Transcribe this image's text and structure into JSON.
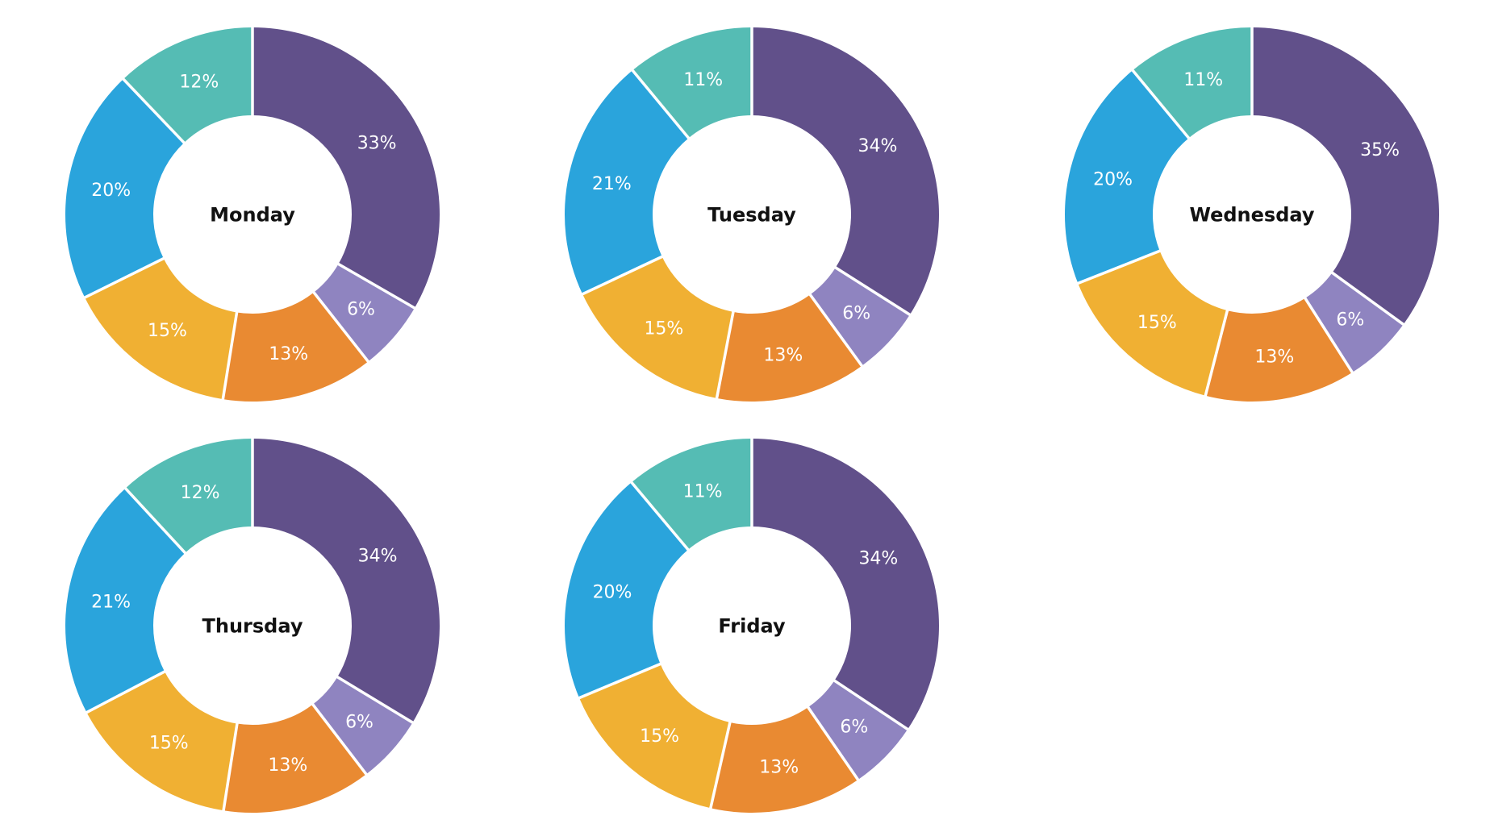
{
  "page": {
    "background_color": "#ffffff"
  },
  "chart_data": {
    "type": "pie",
    "subtype": "donut",
    "direction": "clockwise",
    "start_angle_deg": 0,
    "donut_hole_ratio": 0.53,
    "value_unit": "percent",
    "legend": "none",
    "grid": "off",
    "separator_color": "#ffffff",
    "text_colors": {
      "slice_label": "#ffffff",
      "title": "#111111"
    },
    "segments": [
      {
        "name": "purple-segment",
        "color": "#61508A"
      },
      {
        "name": "light-purple-segment",
        "color": "#8F84C0"
      },
      {
        "name": "orange-segment",
        "color": "#E98A32"
      },
      {
        "name": "amber-segment",
        "color": "#F0B033"
      },
      {
        "name": "blue-segment",
        "color": "#2AA4DC"
      },
      {
        "name": "teal-segment",
        "color": "#55BCB4"
      }
    ],
    "charts": [
      {
        "title": "Monday",
        "values": [
          33,
          6,
          13,
          15,
          20,
          12
        ],
        "labels": [
          "33%",
          "6%",
          "13%",
          "15%",
          "20%",
          "12%"
        ]
      },
      {
        "title": "Tuesday",
        "values": [
          34,
          6,
          13,
          15,
          21,
          11
        ],
        "labels": [
          "34%",
          "6%",
          "13%",
          "15%",
          "21%",
          "11%"
        ]
      },
      {
        "title": "Wednesday",
        "values": [
          35,
          6,
          13,
          15,
          20,
          11
        ],
        "labels": [
          "35%",
          "6%",
          "13%",
          "15%",
          "20%",
          "11%"
        ]
      },
      {
        "title": "Thursday",
        "values": [
          34,
          6,
          13,
          15,
          21,
          12
        ],
        "labels": [
          "34%",
          "6%",
          "13%",
          "15%",
          "21%",
          "12%"
        ]
      },
      {
        "title": "Friday",
        "values": [
          34,
          6,
          13,
          15,
          20,
          11
        ],
        "labels": [
          "34%",
          "6%",
          "13%",
          "15%",
          "20%",
          "11%"
        ]
      }
    ]
  }
}
